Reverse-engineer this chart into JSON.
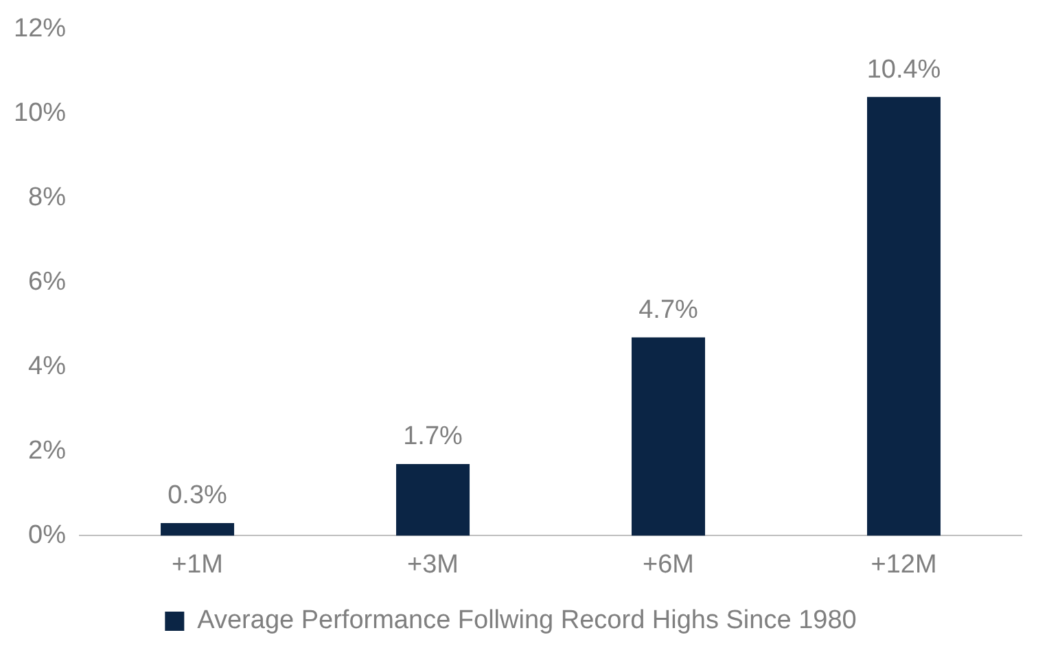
{
  "chart_data": {
    "type": "bar",
    "categories": [
      "+1M",
      "+3M",
      "+6M",
      "+12M"
    ],
    "series": [
      {
        "name": "Average Performance Follwing Record Highs Since 1980",
        "color": "#0b2545",
        "values": [
          0.3,
          1.7,
          4.7,
          10.4
        ],
        "value_labels": [
          "0.3%",
          "1.7%",
          "4.7%",
          "10.4%"
        ]
      }
    ],
    "ylim": [
      0,
      12
    ],
    "yticks": [
      {
        "value": 0,
        "label": "0%"
      },
      {
        "value": 2,
        "label": "2%"
      },
      {
        "value": 4,
        "label": "4%"
      },
      {
        "value": 6,
        "label": "6%"
      },
      {
        "value": 8,
        "label": "8%"
      },
      {
        "value": 10,
        "label": "10%"
      },
      {
        "value": 12,
        "label": "12%"
      }
    ],
    "grid": false,
    "legend": "bottom"
  }
}
